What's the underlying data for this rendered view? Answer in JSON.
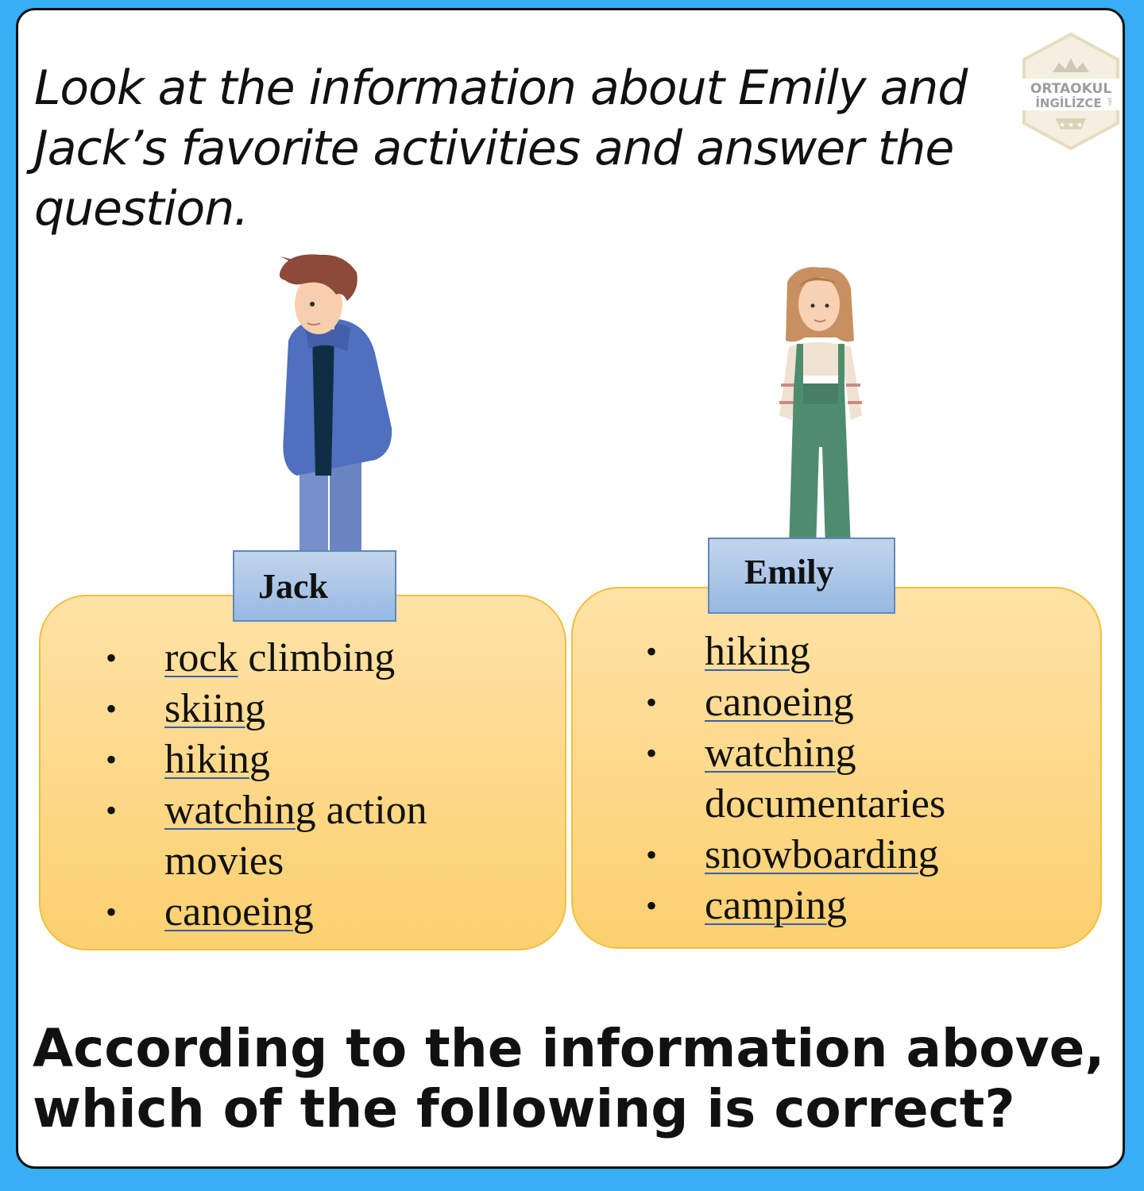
{
  "instruction": "Look at the information about Emily and Jack’s favorite activities and answer the question.",
  "logo": {
    "line1": "ORTAOKUL",
    "line2": "İNGİLİZCE",
    "suffix": "net"
  },
  "jack": {
    "name": "Jack",
    "activities": [
      {
        "underlined": "rock",
        "rest": " climbing"
      },
      {
        "underlined": "skiing",
        "rest": ""
      },
      {
        "underlined": "hiking",
        "rest": ""
      },
      {
        "underlined": "watching",
        "rest": " action movies"
      },
      {
        "underlined": "canoeing",
        "rest": ""
      }
    ]
  },
  "emily": {
    "name": "Emily",
    "activities": [
      {
        "underlined": "hiking",
        "rest": ""
      },
      {
        "underlined": "canoeing",
        "rest": ""
      },
      {
        "underlined": "watching",
        "rest": " documentaries"
      },
      {
        "underlined": "snowboarding",
        "rest": ""
      },
      {
        "underlined": "camping",
        "rest": ""
      }
    ]
  },
  "question": "According to the information above, which of the following is correct?",
  "colors": {
    "background": "#38aef5",
    "panel": "#fcd06f",
    "namebox": "#a8c4e8",
    "jack_hoodie": "#4f6fbf",
    "emily_overalls": "#4f8c6e"
  }
}
